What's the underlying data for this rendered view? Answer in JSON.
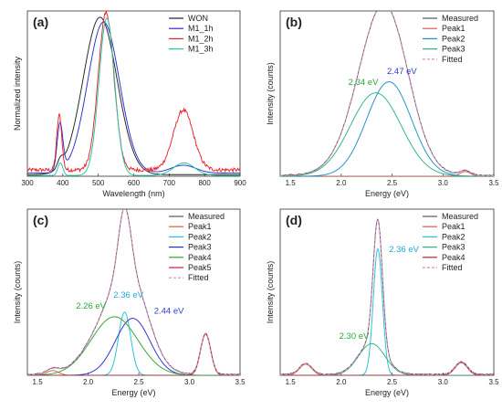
{
  "chart_data": [
    {
      "type": "line",
      "panel_label": "(a)",
      "xlabel": "Wavelength (nm)",
      "ylabel": "Normalized intensity",
      "xlim": [
        300,
        900
      ],
      "ylim": [
        0,
        1.05
      ],
      "xticks": [
        300,
        400,
        500,
        600,
        700,
        800,
        900
      ],
      "yticks_shown": false,
      "legend_position": "top-right",
      "series": [
        {
          "name": "WON",
          "color": "#222222",
          "peaks": [
            {
              "c": 505,
              "w": 48,
              "a": 1.0
            },
            {
              "c": 393,
              "w": 8,
              "a": 0.05
            }
          ],
          "floor": 0.01
        },
        {
          "name": "M1_1h",
          "color": "#2b2bd6",
          "peaks": [
            {
              "c": 515,
              "w": 45,
              "a": 0.96
            },
            {
              "c": 392,
              "w": 8,
              "a": 0.3
            },
            {
              "c": 740,
              "w": 35,
              "a": 0.05
            }
          ],
          "floor": 0.02
        },
        {
          "name": "M1_2h",
          "color": "#e8232b",
          "peaks": [
            {
              "c": 522,
              "w": 22,
              "a": 1.0
            },
            {
              "c": 390,
              "w": 7,
              "a": 0.35
            },
            {
              "c": 740,
              "w": 28,
              "a": 0.38
            }
          ],
          "floor": 0.04,
          "noise": 0.012
        },
        {
          "name": "M1_3h",
          "color": "#22c7a0",
          "peaks": [
            {
              "c": 524,
              "w": 22,
              "a": 1.0
            },
            {
              "c": 393,
              "w": 7,
              "a": 0.08
            },
            {
              "c": 742,
              "w": 30,
              "a": 0.08
            }
          ],
          "floor": 0.005
        }
      ]
    },
    {
      "type": "line",
      "panel_label": "(b)",
      "xlabel": "Energy (eV)",
      "ylabel": "Intensity (counts)",
      "xlim": [
        1.4,
        3.5
      ],
      "ylim": [
        0,
        1.05
      ],
      "xticks": [
        1.5,
        2.0,
        2.5,
        3.0,
        3.5
      ],
      "yticks_shown": false,
      "legend_position": "top-right",
      "series": [
        {
          "name": "Measured",
          "color": "#555555",
          "role": "measured"
        },
        {
          "name": "Peak1",
          "color": "#e8554f",
          "peaks": [
            {
              "c": 3.22,
              "w": 0.05,
              "a": 0.03
            }
          ]
        },
        {
          "name": "Peak2",
          "color": "#1f8fc8",
          "peaks": [
            {
              "c": 2.47,
              "w": 0.22,
              "a": 0.6
            }
          ]
        },
        {
          "name": "Peak3",
          "color": "#2ab583",
          "peaks": [
            {
              "c": 2.34,
              "w": 0.25,
              "a": 0.53
            }
          ]
        },
        {
          "name": "Fitted",
          "color": "#d689c4",
          "dashed": true,
          "role": "fitted"
        }
      ],
      "annotations": [
        {
          "text": "2.34 eV",
          "x": 2.07,
          "y": 0.58,
          "color": "#2aa632"
        },
        {
          "text": "2.47 eV",
          "x": 2.45,
          "y": 0.65,
          "color": "#2c3fd0"
        }
      ]
    },
    {
      "type": "line",
      "panel_label": "(c)",
      "xlabel": "Energy (eV)",
      "ylabel": "Intensity (counts)",
      "xlim": [
        1.4,
        3.5
      ],
      "ylim": [
        0,
        1.05
      ],
      "xticks": [
        1.5,
        2.0,
        2.5,
        3.0,
        3.5
      ],
      "yticks_shown": false,
      "legend_position": "top-right",
      "series": [
        {
          "name": "Measured",
          "color": "#555555",
          "role": "measured"
        },
        {
          "name": "Peak1",
          "color": "#e8554f",
          "peaks": [
            {
              "c": 1.65,
              "w": 0.06,
              "a": 0.03
            }
          ]
        },
        {
          "name": "Peak2",
          "color": "#22c1d6",
          "peaks": [
            {
              "c": 2.36,
              "w": 0.06,
              "a": 0.4
            }
          ]
        },
        {
          "name": "Peak3",
          "color": "#2b2bd6",
          "peaks": [
            {
              "c": 2.44,
              "w": 0.17,
              "a": 0.36
            }
          ]
        },
        {
          "name": "Peak4",
          "color": "#2aa632",
          "peaks": [
            {
              "c": 2.26,
              "w": 0.23,
              "a": 0.37
            }
          ]
        },
        {
          "name": "Peak5",
          "color": "#c42030",
          "peaks": [
            {
              "c": 3.16,
              "w": 0.05,
              "a": 0.26
            }
          ]
        },
        {
          "name": "Fitted",
          "color": "#d689c4",
          "dashed": true,
          "role": "fitted"
        }
      ],
      "annotations": [
        {
          "text": "2.26 eV",
          "x": 1.88,
          "y": 0.42,
          "color": "#2aa632"
        },
        {
          "text": "2.36 eV",
          "x": 2.25,
          "y": 0.49,
          "color": "#22a9d6"
        },
        {
          "text": "2.44 eV",
          "x": 2.65,
          "y": 0.39,
          "color": "#2c3fd0"
        }
      ]
    },
    {
      "type": "line",
      "panel_label": "(d)",
      "xlabel": "Energy (eV)",
      "ylabel": "Intensity (counts)",
      "xlim": [
        1.4,
        3.5
      ],
      "ylim": [
        0,
        1.05
      ],
      "xticks": [
        1.5,
        2.0,
        2.5,
        3.0,
        3.5
      ],
      "yticks_shown": false,
      "legend_position": "top-right",
      "series": [
        {
          "name": "Measured",
          "color": "#555555",
          "role": "measured"
        },
        {
          "name": "Peak1",
          "color": "#e8554f",
          "peaks": [
            {
              "c": 1.65,
              "w": 0.06,
              "a": 0.07
            }
          ]
        },
        {
          "name": "Peak2",
          "color": "#22c1d6",
          "peaks": [
            {
              "c": 2.36,
              "w": 0.045,
              "a": 0.8
            }
          ]
        },
        {
          "name": "Peak3",
          "color": "#2ab583",
          "peaks": [
            {
              "c": 2.3,
              "w": 0.13,
              "a": 0.2
            }
          ]
        },
        {
          "name": "Peak4",
          "color": "#c42030",
          "peaks": [
            {
              "c": 3.18,
              "w": 0.06,
              "a": 0.08
            }
          ]
        },
        {
          "name": "Fitted",
          "color": "#d689c4",
          "dashed": true,
          "role": "fitted"
        }
      ],
      "annotations": [
        {
          "text": "2.36 eV",
          "x": 2.47,
          "y": 0.78,
          "color": "#22a9d6"
        },
        {
          "text": "2.30 eV",
          "x": 1.98,
          "y": 0.23,
          "color": "#2aa632"
        }
      ]
    }
  ]
}
